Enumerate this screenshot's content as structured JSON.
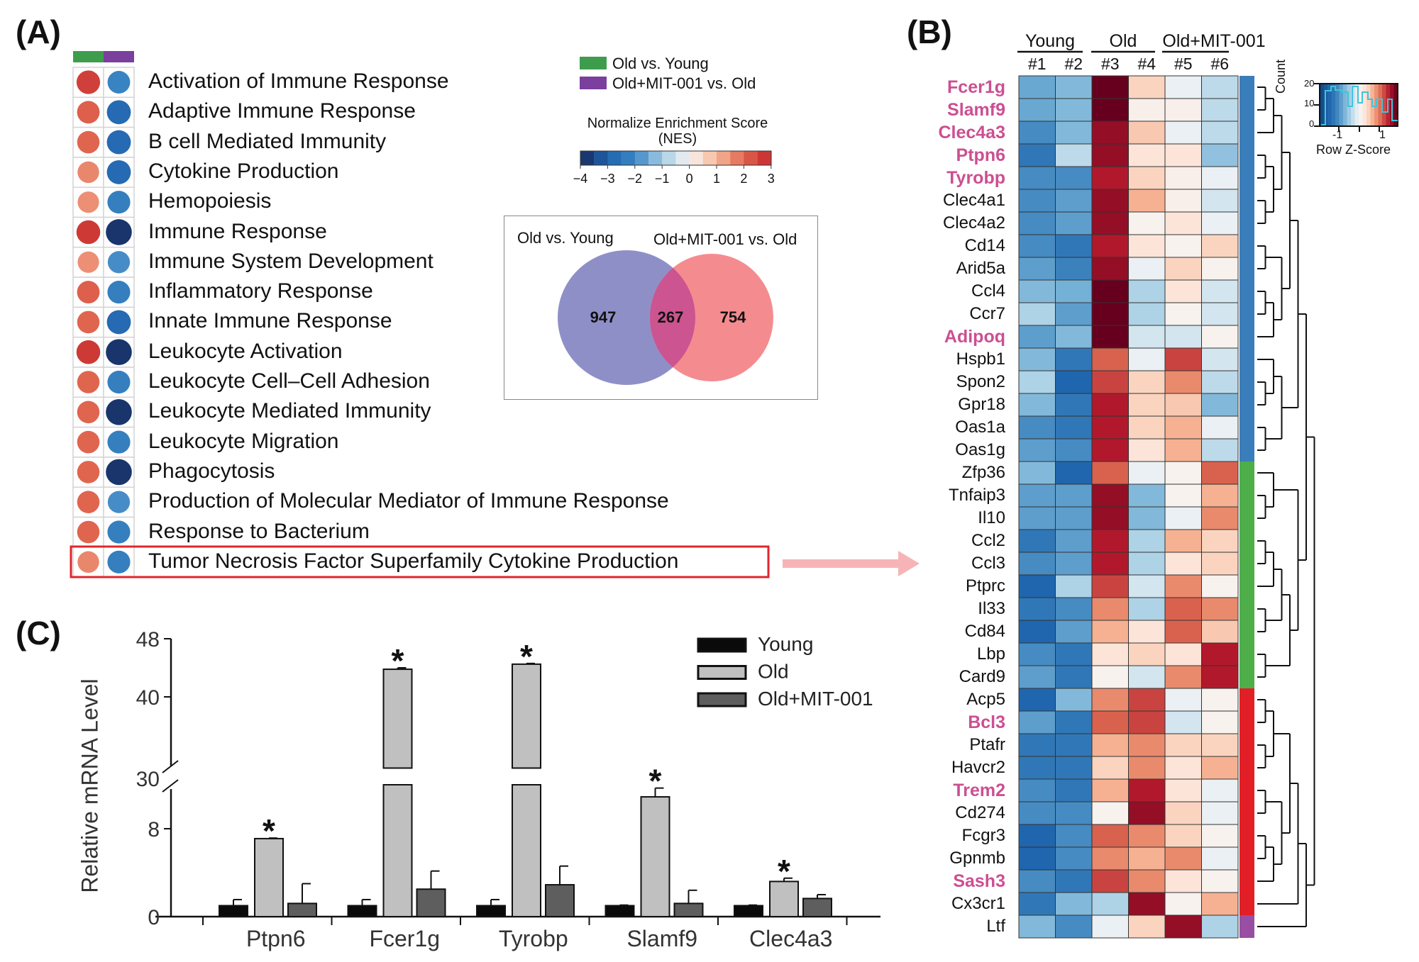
{
  "panels": {
    "a": "(A)",
    "b": "(B)",
    "c": "(C)"
  },
  "panel_a": {
    "legend": [
      {
        "label": "Old vs. Young",
        "color": "#3e9d4d"
      },
      {
        "label": "Old+MIT-001 vs. Old",
        "color": "#7b3f9e"
      }
    ],
    "nes_title": "Normalize Enrichment Score",
    "nes_subtitle": "(NES)",
    "nes_ticks": [
      "−4",
      "−3",
      "−2",
      "−1",
      "0",
      "1",
      "2",
      "3"
    ],
    "highlighted_term": "Tumor Necrosis Factor Superfamily Cytokine Production",
    "terms": [
      {
        "label": "Activation of Immune Response",
        "nes": [
          2.6,
          -2.1
        ]
      },
      {
        "label": "Adaptive Immune Response",
        "nes": [
          2.1,
          -2.8
        ]
      },
      {
        "label": "B cell Mediated Immunity",
        "nes": [
          2.0,
          -2.8
        ]
      },
      {
        "label": "Cytokine Production",
        "nes": [
          1.6,
          -2.8
        ]
      },
      {
        "label": "Hemopoiesis",
        "nes": [
          1.5,
          -2.2
        ]
      },
      {
        "label": "Immune Response",
        "nes": [
          2.7,
          -3.8
        ]
      },
      {
        "label": "Immune System Development",
        "nes": [
          1.5,
          -1.9
        ]
      },
      {
        "label": "Inflammatory Response",
        "nes": [
          2.1,
          -2.2
        ]
      },
      {
        "label": "Innate Immune Response",
        "nes": [
          2.0,
          -2.8
        ]
      },
      {
        "label": "Leukocyte Activation",
        "nes": [
          2.7,
          -3.8
        ]
      },
      {
        "label": "Leukocyte Cell–Cell Adhesion",
        "nes": [
          2.0,
          -2.2
        ]
      },
      {
        "label": "Leukocyte Mediated Immunity",
        "nes": [
          2.0,
          -3.8
        ]
      },
      {
        "label": "Leukocyte Migration",
        "nes": [
          2.0,
          -2.2
        ]
      },
      {
        "label": "Phagocytosis",
        "nes": [
          2.0,
          -3.8
        ]
      },
      {
        "label": "Production of Molecular Mediator of Immune Response",
        "nes": [
          2.0,
          -1.9
        ]
      },
      {
        "label": "Response to Bacterium",
        "nes": [
          2.0,
          -2.2
        ]
      },
      {
        "label": "Tumor Necrosis Factor Superfamily Cytokine Production",
        "nes": [
          1.6,
          -2.2
        ]
      }
    ],
    "venn": {
      "left_label": "Old vs. Young",
      "right_label": "Old+MIT-001 vs. Old",
      "left_only": "947",
      "overlap": "267",
      "right_only": "754",
      "left_color": "#8f8fc8",
      "right_color": "#f48c8f",
      "overlap_color": "#cc5490"
    }
  },
  "chart_data": [
    {
      "type": "heatmap",
      "title": "",
      "groups": [
        {
          "label": "Young",
          "columns": [
            "#1",
            "#2"
          ]
        },
        {
          "label": "Old",
          "columns": [
            "#3",
            "#4"
          ]
        },
        {
          "label": "Old+MIT-001",
          "columns": [
            "#5",
            "#6"
          ]
        }
      ],
      "columns": [
        "#1",
        "#2",
        "#3",
        "#4",
        "#5",
        "#6"
      ],
      "color_key": {
        "ylabel": "Count",
        "xlabel": "Row Z-Score",
        "y_ticks": [
          "20",
          "10",
          "0"
        ],
        "x_ticks": [
          "-1",
          "1"
        ]
      },
      "cluster_colors": {
        "blue": "#3a7dbb",
        "green": "#4dae4a",
        "red": "#e21f26",
        "purple": "#984ea3"
      },
      "highlight_color": "#cc4f92",
      "rows": [
        {
          "gene": "Fcer1g",
          "hl": true,
          "cluster": "blue",
          "z": [
            -1.1,
            -0.9,
            2.5,
            0.6,
            -0.1,
            -0.5
          ]
        },
        {
          "gene": "Slamf9",
          "hl": true,
          "cluster": "blue",
          "z": [
            -1.1,
            -0.9,
            2.5,
            0.15,
            0.15,
            -0.5
          ]
        },
        {
          "gene": "Clec4a3",
          "hl": true,
          "cluster": "blue",
          "z": [
            -1.4,
            -0.9,
            2.2,
            0.7,
            -0.1,
            -0.5
          ]
        },
        {
          "gene": "Ptpn6",
          "hl": true,
          "cluster": "blue",
          "z": [
            -1.7,
            -0.5,
            2.2,
            0.4,
            0.4,
            -0.8
          ]
        },
        {
          "gene": "Tyrobp",
          "hl": true,
          "cluster": "blue",
          "z": [
            -1.4,
            -1.4,
            2.0,
            0.6,
            0.15,
            -0.1
          ]
        },
        {
          "gene": "Clec4a1",
          "hl": false,
          "cluster": "blue",
          "z": [
            -1.4,
            -1.2,
            2.2,
            0.9,
            0.15,
            -0.3
          ]
        },
        {
          "gene": "Clec4a2",
          "hl": false,
          "cluster": "blue",
          "z": [
            -1.4,
            -1.2,
            2.2,
            0.1,
            0.4,
            -0.1
          ]
        },
        {
          "gene": "Cd14",
          "hl": false,
          "cluster": "blue",
          "z": [
            -1.4,
            -1.7,
            2.0,
            0.4,
            0.1,
            0.6
          ]
        },
        {
          "gene": "Arid5a",
          "hl": false,
          "cluster": "blue",
          "z": [
            -1.2,
            -1.5,
            2.2,
            -0.1,
            0.6,
            0.1
          ]
        },
        {
          "gene": "Ccl4",
          "hl": false,
          "cluster": "blue",
          "z": [
            -0.9,
            -1.0,
            2.5,
            -0.6,
            0.4,
            -0.3
          ]
        },
        {
          "gene": "Ccr7",
          "hl": false,
          "cluster": "blue",
          "z": [
            -0.6,
            -1.2,
            2.5,
            -0.6,
            0.1,
            -0.3
          ]
        },
        {
          "gene": "Adipoq",
          "hl": true,
          "cluster": "blue",
          "z": [
            -1.2,
            -0.9,
            2.5,
            -0.3,
            -0.3,
            0.1
          ]
        },
        {
          "gene": "Hspb1",
          "hl": false,
          "cluster": "blue",
          "z": [
            -0.9,
            -1.7,
            1.5,
            -0.1,
            1.7,
            -0.3
          ]
        },
        {
          "gene": "Spon2",
          "hl": false,
          "cluster": "blue",
          "z": [
            -0.6,
            -2.0,
            1.7,
            0.6,
            1.2,
            -0.5
          ]
        },
        {
          "gene": "Gpr18",
          "hl": false,
          "cluster": "blue",
          "z": [
            -0.9,
            -1.7,
            2.0,
            0.6,
            0.7,
            -0.9
          ]
        },
        {
          "gene": "Oas1a",
          "hl": false,
          "cluster": "blue",
          "z": [
            -1.4,
            -1.7,
            2.0,
            0.6,
            0.9,
            -0.1
          ]
        },
        {
          "gene": "Oas1g",
          "hl": false,
          "cluster": "blue",
          "z": [
            -1.2,
            -1.4,
            2.0,
            0.4,
            0.9,
            -0.5
          ]
        },
        {
          "gene": "Zfp36",
          "hl": false,
          "cluster": "green",
          "z": [
            -0.9,
            -2.0,
            1.5,
            -0.1,
            0.1,
            1.5
          ]
        },
        {
          "gene": "Tnfaip3",
          "hl": false,
          "cluster": "green",
          "z": [
            -1.2,
            -1.2,
            2.2,
            -0.9,
            0.1,
            0.9
          ]
        },
        {
          "gene": "Il10",
          "hl": false,
          "cluster": "green",
          "z": [
            -1.2,
            -1.2,
            2.2,
            -0.9,
            -0.1,
            1.2
          ]
        },
        {
          "gene": "Ccl2",
          "hl": false,
          "cluster": "green",
          "z": [
            -1.7,
            -1.2,
            2.0,
            -0.6,
            0.9,
            0.6
          ]
        },
        {
          "gene": "Ccl3",
          "hl": false,
          "cluster": "green",
          "z": [
            -1.4,
            -1.2,
            2.0,
            -0.6,
            0.4,
            0.6
          ]
        },
        {
          "gene": "Ptprc",
          "hl": false,
          "cluster": "green",
          "z": [
            -2.0,
            -0.6,
            1.7,
            -0.3,
            1.2,
            0.1
          ]
        },
        {
          "gene": "Il33",
          "hl": false,
          "cluster": "green",
          "z": [
            -1.7,
            -1.4,
            1.2,
            -0.6,
            1.5,
            1.2
          ]
        },
        {
          "gene": "Cd84",
          "hl": false,
          "cluster": "green",
          "z": [
            -2.0,
            -1.2,
            0.9,
            0.4,
            1.5,
            0.7
          ]
        },
        {
          "gene": "Lbp",
          "hl": false,
          "cluster": "green",
          "z": [
            -1.4,
            -1.7,
            0.4,
            0.6,
            0.4,
            2.0
          ]
        },
        {
          "gene": "Card9",
          "hl": false,
          "cluster": "green",
          "z": [
            -1.2,
            -1.7,
            0.1,
            -0.3,
            1.2,
            2.0
          ]
        },
        {
          "gene": "Acp5",
          "hl": false,
          "cluster": "red",
          "z": [
            -2.0,
            -0.9,
            1.2,
            1.7,
            -0.1,
            0.1
          ]
        },
        {
          "gene": "Bcl3",
          "hl": true,
          "cluster": "red",
          "z": [
            -1.2,
            -1.7,
            1.5,
            1.7,
            -0.3,
            0.1
          ]
        },
        {
          "gene": "Ptafr",
          "hl": false,
          "cluster": "red",
          "z": [
            -1.7,
            -1.7,
            0.9,
            1.2,
            0.6,
            0.6
          ]
        },
        {
          "gene": "Havcr2",
          "hl": false,
          "cluster": "red",
          "z": [
            -1.7,
            -1.7,
            0.6,
            1.2,
            0.4,
            0.9
          ]
        },
        {
          "gene": "Trem2",
          "hl": true,
          "cluster": "red",
          "z": [
            -1.4,
            -1.7,
            0.9,
            2.0,
            0.4,
            -0.1
          ]
        },
        {
          "gene": "Cd274",
          "hl": false,
          "cluster": "red",
          "z": [
            -1.4,
            -1.4,
            0.1,
            2.2,
            0.6,
            -0.1
          ]
        },
        {
          "gene": "Fcgr3",
          "hl": false,
          "cluster": "red",
          "z": [
            -2.0,
            -1.4,
            1.5,
            1.2,
            0.6,
            0.1
          ]
        },
        {
          "gene": "Gpnmb",
          "hl": false,
          "cluster": "red",
          "z": [
            -2.0,
            -1.4,
            1.2,
            0.9,
            1.2,
            -0.1
          ]
        },
        {
          "gene": "Sash3",
          "hl": true,
          "cluster": "red",
          "z": [
            -1.4,
            -1.7,
            1.7,
            1.2,
            0.4,
            0.1
          ]
        },
        {
          "gene": "Cx3cr1",
          "hl": false,
          "cluster": "red",
          "z": [
            -1.7,
            -0.9,
            -0.6,
            2.2,
            0.1,
            0.9
          ]
        },
        {
          "gene": "Ltf",
          "hl": false,
          "cluster": "purple",
          "z": [
            -0.9,
            -1.4,
            -0.1,
            0.6,
            2.2,
            -0.6
          ]
        }
      ]
    },
    {
      "type": "bar",
      "title": "",
      "xlabel": "",
      "ylabel": "Relative mRNA Level",
      "y_ticks": [
        "48",
        "40",
        "30",
        "8",
        "0"
      ],
      "axis_break": [
        12,
        30
      ],
      "ylim": [
        0,
        48
      ],
      "categories": [
        "Ptpn6",
        "Fcer1g",
        "Tyrobp",
        "Slamf9",
        "Clec4a3"
      ],
      "series": [
        {
          "name": "Young",
          "color": "#0a0a0a",
          "values": [
            1.0,
            1.0,
            1.0,
            1.0,
            1.0
          ],
          "errors": [
            0.55,
            0.55,
            0.55,
            0.05,
            0.05
          ]
        },
        {
          "name": "Old",
          "color": "#c0c0c0",
          "values": [
            7.1,
            43.8,
            44.5,
            10.9,
            3.2
          ],
          "errors": [
            0.05,
            0.2,
            0.1,
            0.8,
            0.3
          ]
        },
        {
          "name": "Old+MIT-001",
          "color": "#5e5e5e",
          "values": [
            1.2,
            2.5,
            2.9,
            1.2,
            1.65
          ],
          "errors": [
            1.8,
            1.65,
            1.7,
            1.2,
            0.35
          ]
        }
      ],
      "significance": [
        "*",
        "*",
        "*",
        "*",
        "*"
      ],
      "legend_position": "top-right"
    }
  ]
}
